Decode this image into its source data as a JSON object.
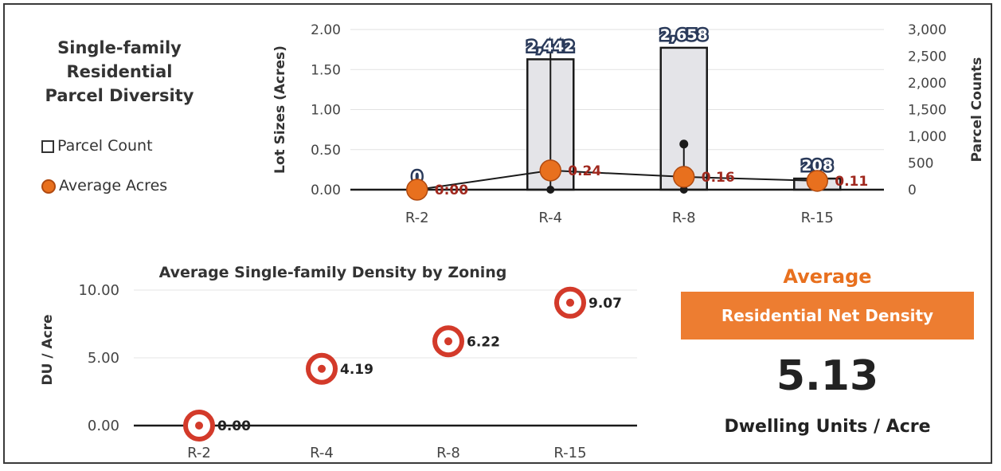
{
  "legend": {
    "title_lines": [
      "Single-family",
      "Residential",
      "Parcel Diversity"
    ],
    "parcel_count_label": "Parcel Count",
    "average_acres_label": "Average Acres"
  },
  "chart_data": [
    {
      "type": "bar",
      "categories": [
        "R-2",
        "R-4",
        "R-8",
        "R-15"
      ],
      "ylabel": "Lot  Sizes  (Acres)",
      "ylim": [
        0,
        2
      ],
      "yticks": [
        "0.00",
        "0.50",
        "1.00",
        "1.50",
        "2.00"
      ],
      "y2label": "Parcel  Counts",
      "y2lim": [
        0,
        3000
      ],
      "y2ticks": [
        "0",
        "500",
        "1,000",
        "1,500",
        "2,000",
        "2,500",
        "3,000"
      ],
      "series": [
        {
          "name": "Parcel Count",
          "axis": "right",
          "values": [
            0,
            2442,
            2658,
            208
          ],
          "labels": [
            "0",
            "2,442",
            "2,658",
            "208"
          ]
        },
        {
          "name": "Average Acres",
          "axis": "left",
          "values": [
            0.0,
            0.24,
            0.16,
            0.11
          ],
          "labels": [
            "0:00",
            "0.24",
            "0.16",
            "0.11"
          ],
          "max": [
            0.0,
            1.78,
            0.57,
            0.0
          ],
          "min": [
            0.0,
            0.0,
            0.0,
            0.0
          ]
        }
      ],
      "colors": {
        "bar_fill": "#E4E4E8",
        "bar_stroke": "#1a1a1a",
        "marker": "#E8701E",
        "label": "#A0281E"
      }
    },
    {
      "type": "line",
      "title": "Average Single-family Density by Zoning",
      "categories": [
        "R-2",
        "R-4",
        "R-8",
        "R-15"
      ],
      "values": [
        0.0,
        4.19,
        6.22,
        9.07
      ],
      "labels": [
        "0.00",
        "4.19",
        "6.22",
        "9.07"
      ],
      "ylabel": "DU / Acre",
      "ylim": [
        0,
        10
      ],
      "yticks": [
        "0.00",
        "5.00",
        "10.00"
      ],
      "colors": {
        "marker": "#D33A2A",
        "label": "#222222"
      }
    }
  ],
  "summary": {
    "average_label": "Average",
    "band_label": "Residential Net Density",
    "value": "5.13",
    "unit": "Dwelling Units / Acre",
    "accent": "#ED7D31"
  }
}
